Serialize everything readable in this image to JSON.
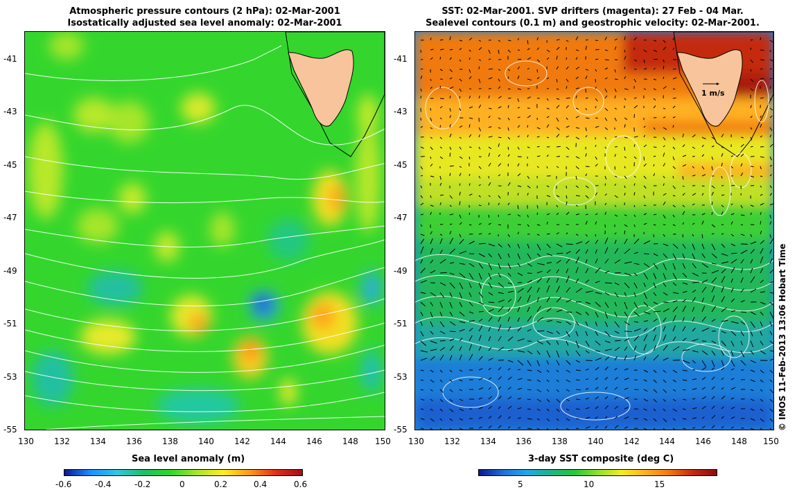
{
  "left": {
    "title_line1": "Atmospheric pressure contours (2 hPa): 02-Mar-2001",
    "title_line2": "Isostatically adjusted sea level anomaly: 02-Mar-2001",
    "colorbar_label": "Sea level anomaly (m)",
    "colorbar_ticks": [
      "-0.6",
      "-0.4",
      "-0.2",
      "0",
      "0.2",
      "0.4",
      "0.6"
    ]
  },
  "right": {
    "title_line1": "SST: 02-Mar-2001. SVP drifters (magenta): 27 Feb - 04 Mar.",
    "title_line2": "Sealevel contours (0.1 m) and geostrophic velocity: 02-Mar-2001.",
    "colorbar_label": "3-day SST composite (deg C)",
    "colorbar_ticks": [
      "5",
      "10",
      "15"
    ],
    "scale_label": "1 m/s"
  },
  "x_ticks": [
    "130",
    "132",
    "134",
    "136",
    "138",
    "140",
    "142",
    "144",
    "146",
    "148",
    "150"
  ],
  "y_ticks": [
    "-41",
    "-43",
    "-45",
    "-47",
    "-49",
    "-51",
    "-53",
    "-55"
  ],
  "credit": "© IMOS 11-Feb-2013 13:06 Hobart Time",
  "colors": {
    "land": "#f7c49b",
    "ssh_scale": [
      "#0a1a8c",
      "#1e90ff",
      "#33c6e0",
      "#1fbf6a",
      "#2fd62a",
      "#a6e62a",
      "#ffee22",
      "#ff9a1a",
      "#e0301a",
      "#a0101a"
    ],
    "sst_scale": [
      "#0a1a8c",
      "#1e6fd8",
      "#22a6e8",
      "#1fb38a",
      "#26c63a",
      "#8fe02a",
      "#f2ee22",
      "#ffb020",
      "#f07a10",
      "#c42a10",
      "#8a0d10"
    ]
  }
}
